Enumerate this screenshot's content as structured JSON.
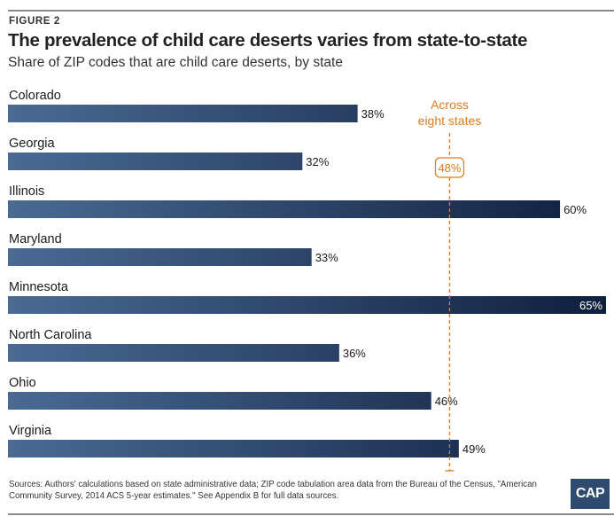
{
  "figure_label": "FIGURE 2",
  "title": "The prevalence of child care deserts varies from state-to-state",
  "subtitle": "Share of ZIP codes that are child care deserts, by state",
  "sources": "Sources: Authors' calculations based on state administrative data; ZIP code tabulation area data from the Bureau of the Census, \"American Community Survey, 2014 ACS 5-year estimates.\" See Appendix B for full data sources.",
  "logo": "CAP",
  "chart_data": {
    "type": "bar",
    "orientation": "horizontal",
    "categories": [
      "Colorado",
      "Georgia",
      "Illinois",
      "Maryland",
      "Minnesota",
      "North Carolina",
      "Ohio",
      "Virginia"
    ],
    "values": [
      38,
      32,
      60,
      33,
      65,
      36,
      46,
      49
    ],
    "value_labels": [
      "38%",
      "32%",
      "60%",
      "33%",
      "65%",
      "36%",
      "46%",
      "49%"
    ],
    "xlim": [
      0,
      65
    ],
    "reference_line": {
      "value": 48,
      "label": "Across eight states",
      "value_label": "48%",
      "color": "#e07b1f"
    },
    "colors": {
      "bar_light": "#4a6a94",
      "bar_dark": "#0f1f3d",
      "accent": "#e07b1f"
    }
  }
}
